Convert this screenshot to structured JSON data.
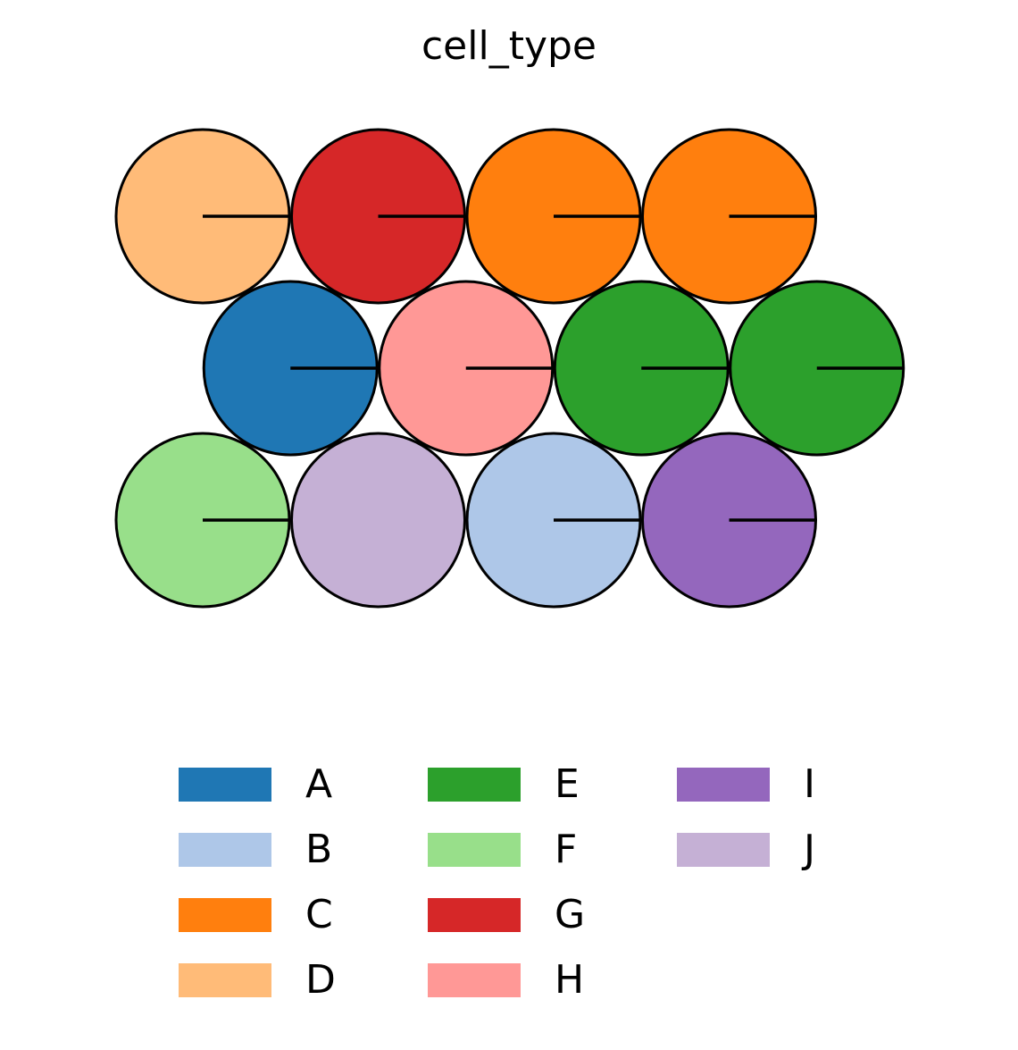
{
  "chart_data": {
    "type": "scatter",
    "title": "cell_type",
    "xlabel": "",
    "ylabel": "",
    "grid": false,
    "axes_visible": false,
    "legend_placement": "bottom",
    "categories": [
      "A",
      "B",
      "C",
      "D",
      "E",
      "F",
      "G",
      "H",
      "I",
      "J"
    ],
    "colors": {
      "A": "#1f77b4",
      "B": "#aec7e8",
      "C": "#ff7f0e",
      "D": "#ffbb78",
      "E": "#2ca02c",
      "F": "#98df8a",
      "G": "#d62728",
      "H": "#ff9896",
      "I": "#9467bd",
      "J": "#c5b0d5"
    },
    "hex_grid": {
      "rows": 3,
      "cols": 4,
      "odd_row_offset": 0.5
    },
    "cells": [
      {
        "row": 0,
        "col": 0,
        "category": "D",
        "direction_line": true
      },
      {
        "row": 0,
        "col": 1,
        "category": "G",
        "direction_line": true
      },
      {
        "row": 0,
        "col": 2,
        "category": "C",
        "direction_line": true
      },
      {
        "row": 0,
        "col": 3,
        "category": "C",
        "direction_line": true
      },
      {
        "row": 1,
        "col": 0,
        "category": "A",
        "direction_line": true
      },
      {
        "row": 1,
        "col": 1,
        "category": "H",
        "direction_line": true
      },
      {
        "row": 1,
        "col": 2,
        "category": "E",
        "direction_line": true
      },
      {
        "row": 1,
        "col": 3,
        "category": "E",
        "direction_line": true
      },
      {
        "row": 2,
        "col": 0,
        "category": "F",
        "direction_line": true
      },
      {
        "row": 2,
        "col": 1,
        "category": "J",
        "direction_line": false
      },
      {
        "row": 2,
        "col": 2,
        "category": "B",
        "direction_line": true
      },
      {
        "row": 2,
        "col": 3,
        "category": "I",
        "direction_line": true
      }
    ],
    "legend": {
      "columns": 3,
      "items_per_column": 4,
      "entries": [
        "A",
        "B",
        "C",
        "D",
        "E",
        "F",
        "G",
        "H",
        "I",
        "J"
      ]
    }
  }
}
